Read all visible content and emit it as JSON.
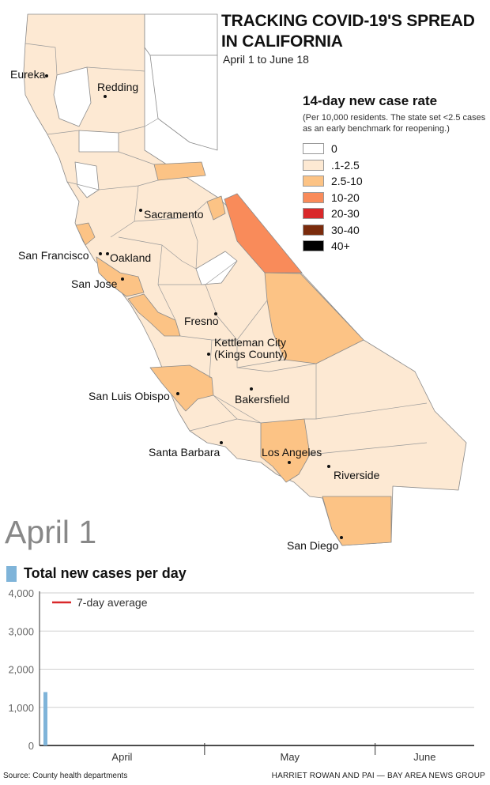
{
  "header": {
    "title_line1": "TRACKING COVID-19'S SPREAD",
    "title_line2": "IN CALIFORNIA",
    "subtitle": "April 1 to June 18"
  },
  "legend": {
    "title": "14-day new case rate",
    "note": "(Per 10,000 residents. The state set <2.5 cases as an early benchmark for reopening.)",
    "items": [
      {
        "label": "0",
        "color": "#ffffff"
      },
      {
        "label": ".1-2.5",
        "color": "#fde9d3"
      },
      {
        "label": "2.5-10",
        "color": "#fcc385"
      },
      {
        "label": "10-20",
        "color": "#f98b5a"
      },
      {
        "label": "20-30",
        "color": "#d9282a"
      },
      {
        "label": "30-40",
        "color": "#7a2b0c"
      },
      {
        "label": "40+",
        "color": "#000000"
      }
    ]
  },
  "map": {
    "cities": {
      "eureka": "Eureka",
      "redding": "Redding",
      "sacramento": "Sacramento",
      "san_francisco": "San Francisco",
      "oakland": "Oakland",
      "san_jose": "San Jose",
      "fresno": "Fresno",
      "kettleman_1": "Kettleman City",
      "kettleman_2": "(Kings County)",
      "san_luis_obispo": "San Luis Obispo",
      "bakersfield": "Bakersfield",
      "santa_barbara": "Santa Barbara",
      "los_angeles": "Los Angeles",
      "riverside": "Riverside",
      "san_diego": "San Diego"
    },
    "colors": {
      "zero": "#ffffff",
      "low": "#fde9d3",
      "mid": "#fcc385",
      "high": "#f98b5a",
      "border": "#8a8a8a"
    }
  },
  "date_label": "April 1",
  "chart_title": "Total new cases per day",
  "chart_data": {
    "type": "bar",
    "title": "Total new cases per day",
    "x_axis_labels": [
      "April",
      "May",
      "June"
    ],
    "y_ticks": [
      "0",
      "1,000",
      "2,000",
      "3,000",
      "4,000"
    ],
    "ylim": [
      0,
      4000
    ],
    "x_range": [
      "April 1",
      "June 18"
    ],
    "grid": true,
    "legend": {
      "entries": [
        "7-day average"
      ],
      "placement": "top-left"
    },
    "series": [
      {
        "type": "bar",
        "x": [
          "April 1"
        ],
        "values": [
          1400
        ],
        "color": "#7fb4d9"
      },
      {
        "name": "7-day average",
        "type": "line",
        "values": [],
        "color": "#d9282a"
      }
    ]
  },
  "footer": {
    "source": "Source: County health departments",
    "credit": "HARRIET ROWAN AND PAI — BAY AREA NEWS GROUP"
  }
}
